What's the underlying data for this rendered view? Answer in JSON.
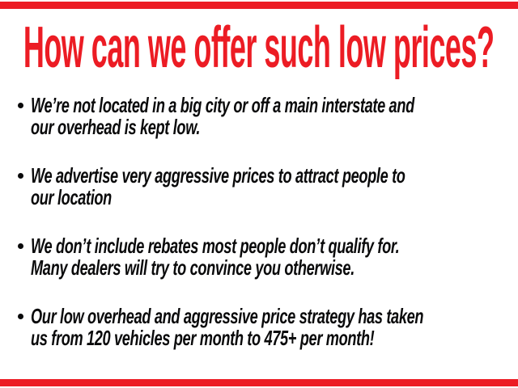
{
  "page": {
    "background_color": "#FFFFFF",
    "accent_red": "#EC1C24",
    "text_color": "#0A0A0B"
  },
  "decorations": {
    "top_bar_color": "#EC1C24",
    "bottom_bar_color": "#EC1C24"
  },
  "heading": {
    "text": "How can we offer such low prices?"
  },
  "bullets": [
    {
      "lines": [
        "We’re not located in a big city or off a main interstate and",
        "our overhead is kept low."
      ]
    },
    {
      "lines": [
        "We advertise very aggressive prices to attract people to",
        "our location"
      ]
    },
    {
      "lines": [
        "We don’t include rebates most people don’t qualify for.",
        "Many dealers will try to convince you otherwise."
      ]
    },
    {
      "lines": [
        "Our low overhead and aggressive price strategy has taken",
        "us from 120 vehicles per month to 475+ per month!"
      ]
    }
  ]
}
